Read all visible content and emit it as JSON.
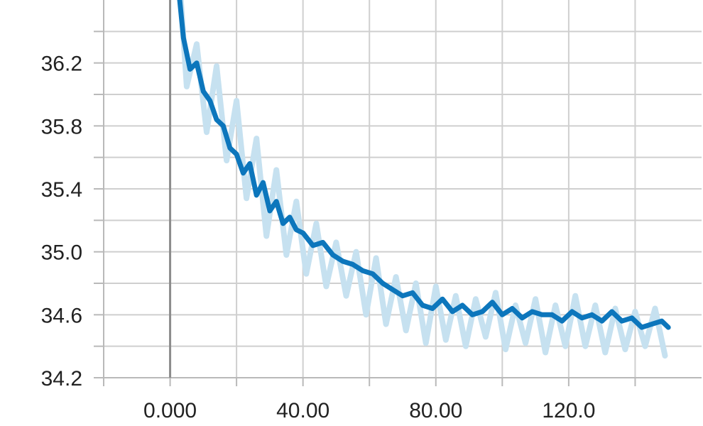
{
  "chart_data": {
    "type": "line",
    "title": "",
    "xlabel": "",
    "ylabel": "",
    "xlim": [
      -20,
      160
    ],
    "ylim": [
      34.2,
      36.6
    ],
    "grid": true,
    "x_ticks": [
      {
        "value": 0,
        "label": "0.000"
      },
      {
        "value": 40,
        "label": "40.00"
      },
      {
        "value": 80,
        "label": "80.00"
      },
      {
        "value": 120,
        "label": "120.0"
      }
    ],
    "x_minor_ticks": [
      -20,
      20,
      60,
      100,
      140
    ],
    "y_ticks": [
      {
        "value": 34.2,
        "label": "34.2"
      },
      {
        "value": 34.6,
        "label": "34.6"
      },
      {
        "value": 35.0,
        "label": "35.0"
      },
      {
        "value": 35.4,
        "label": "35.4"
      },
      {
        "value": 35.8,
        "label": "35.8"
      },
      {
        "value": 36.2,
        "label": "36.2"
      }
    ],
    "y_minor_ticks": [
      34.4,
      34.8,
      35.2,
      35.6,
      36.0,
      36.4
    ],
    "series": [
      {
        "role": "raw",
        "color": "#c6e1f0",
        "x": [
          3,
          5,
          8,
          11,
          14,
          17,
          20,
          23,
          26,
          29,
          32,
          35,
          38,
          41,
          44,
          47,
          50,
          53,
          56,
          59,
          62,
          65,
          68,
          71,
          74,
          77,
          80,
          83,
          86,
          89,
          92,
          95,
          98,
          101,
          104,
          107,
          110,
          113,
          116,
          119,
          122,
          125,
          128,
          131,
          134,
          137,
          140,
          143,
          146,
          149
        ],
        "y": [
          36.68,
          36.05,
          36.32,
          35.76,
          36.18,
          35.58,
          35.96,
          35.34,
          35.72,
          35.1,
          35.52,
          34.98,
          35.32,
          34.86,
          35.18,
          34.78,
          35.06,
          34.72,
          35.0,
          34.6,
          34.96,
          34.54,
          34.84,
          34.5,
          34.8,
          34.42,
          34.78,
          34.44,
          34.72,
          34.4,
          34.7,
          34.46,
          34.74,
          34.38,
          34.66,
          34.42,
          34.7,
          34.36,
          34.66,
          34.4,
          34.72,
          34.4,
          34.66,
          34.36,
          34.64,
          34.38,
          34.62,
          34.4,
          34.64,
          34.34
        ]
      },
      {
        "role": "smoothed",
        "color": "#0c76bc",
        "x": [
          2.5,
          4,
          6,
          8,
          10,
          12,
          14,
          16,
          18,
          20,
          22,
          24,
          26,
          28,
          30,
          32,
          34,
          36,
          38,
          40,
          43,
          46,
          49,
          52,
          55,
          58,
          61,
          64,
          67,
          70,
          73,
          76,
          79,
          82,
          85,
          88,
          91,
          94,
          97,
          100,
          103,
          106,
          109,
          112,
          115,
          118,
          121,
          124,
          127,
          130,
          133,
          136,
          139,
          142,
          145,
          148,
          150
        ],
        "y": [
          36.68,
          36.36,
          36.16,
          36.2,
          36.02,
          35.96,
          35.84,
          35.8,
          35.66,
          35.62,
          35.5,
          35.56,
          35.36,
          35.44,
          35.26,
          35.32,
          35.18,
          35.22,
          35.14,
          35.12,
          35.04,
          35.06,
          34.98,
          34.94,
          34.92,
          34.88,
          34.86,
          34.8,
          34.76,
          34.72,
          34.74,
          34.66,
          34.64,
          34.7,
          34.62,
          34.66,
          34.6,
          34.62,
          34.68,
          34.6,
          34.64,
          34.58,
          34.62,
          34.6,
          34.6,
          34.56,
          34.62,
          34.58,
          34.6,
          34.56,
          34.62,
          34.56,
          34.58,
          34.52,
          34.54,
          34.56,
          34.52
        ]
      }
    ]
  }
}
